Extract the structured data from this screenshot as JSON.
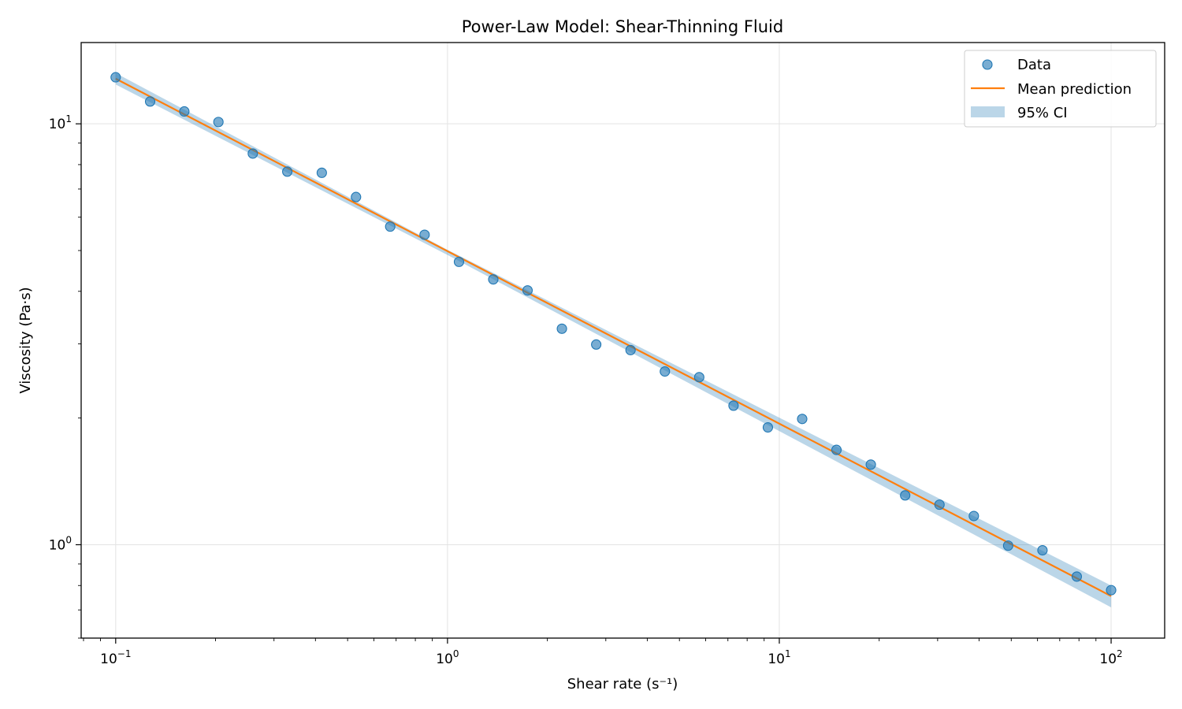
{
  "chart_data": {
    "type": "scatter",
    "title": "Power-Law Model: Shear-Thinning Fluid",
    "xlabel": "Shear rate (s⁻¹)",
    "ylabel": "Viscosity (Pa·s)",
    "xscale": "log",
    "yscale": "log",
    "xlim": [
      0.0787,
      145
    ],
    "ylim": [
      0.6,
      15.6
    ],
    "grid": true,
    "legend_position": "top-right",
    "x_ticks": [
      {
        "value": 0.1,
        "base": "10",
        "exp": "−1"
      },
      {
        "value": 1,
        "base": "10",
        "exp": "0"
      },
      {
        "value": 10,
        "base": "10",
        "exp": "1"
      },
      {
        "value": 100,
        "base": "10",
        "exp": "2"
      }
    ],
    "y_ticks": [
      {
        "value": 1,
        "base": "10",
        "exp": "0"
      },
      {
        "value": 10,
        "base": "10",
        "exp": "1"
      }
    ],
    "colors": {
      "data": "#1f77b4",
      "mean": "#ff7f0e",
      "ci": "#1f77b4"
    },
    "series": [
      {
        "name": "Data",
        "kind": "scatter",
        "x": [
          0.1,
          0.127,
          0.161,
          0.204,
          0.259,
          0.329,
          0.418,
          0.53,
          0.672,
          0.853,
          1.083,
          1.374,
          1.743,
          2.212,
          2.807,
          3.562,
          4.52,
          5.736,
          7.279,
          9.237,
          11.72,
          14.87,
          18.87,
          23.95,
          30.39,
          38.57,
          48.94,
          62.1,
          78.8,
          100
        ],
        "y": [
          12.9,
          11.3,
          10.7,
          10.1,
          8.5,
          7.7,
          7.65,
          6.7,
          5.7,
          5.45,
          4.7,
          4.27,
          4.02,
          3.26,
          2.99,
          2.9,
          2.58,
          2.5,
          2.14,
          1.9,
          1.99,
          1.68,
          1.55,
          1.31,
          1.245,
          1.17,
          0.995,
          0.97,
          0.84,
          0.78
        ]
      },
      {
        "name": "Mean prediction",
        "kind": "line",
        "x": [
          0.1,
          100
        ],
        "y": [
          12.8,
          0.755
        ]
      },
      {
        "name": "95% CI",
        "kind": "band",
        "x": [
          0.1,
          1,
          100
        ],
        "lower": [
          12.4,
          4.88,
          0.71
        ],
        "upper": [
          13.2,
          5.02,
          0.8
        ]
      }
    ]
  }
}
